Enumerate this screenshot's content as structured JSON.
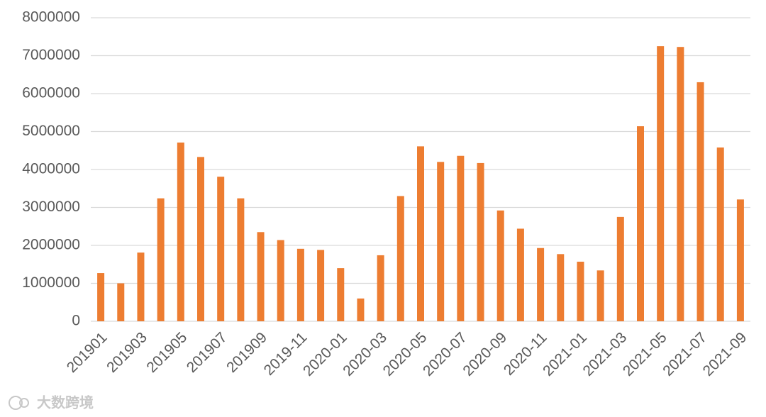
{
  "chart_data": {
    "type": "bar",
    "categories": [
      "201901",
      null,
      "201903",
      null,
      "201905",
      null,
      "201907",
      null,
      "201909",
      null,
      "2019-11",
      null,
      "2020-01",
      null,
      "2020-03",
      null,
      "2020-05",
      null,
      "2020-07",
      null,
      "2020-09",
      null,
      "2020-11",
      null,
      "2021-01",
      null,
      "2021-03",
      null,
      "2021-05",
      null,
      "2021-07",
      null,
      "2021-09"
    ],
    "values": [
      1270000,
      1000000,
      1810000,
      3240000,
      4710000,
      4330000,
      3810000,
      3240000,
      2350000,
      2140000,
      1910000,
      1880000,
      1400000,
      600000,
      1740000,
      3300000,
      4610000,
      4200000,
      4360000,
      4170000,
      2920000,
      2440000,
      1930000,
      1770000,
      1570000,
      1340000,
      2750000,
      5140000,
      7250000,
      7230000,
      6300000,
      4580000,
      3210000
    ],
    "color": "#ed7d31",
    "ylim": [
      0,
      8000000
    ],
    "yticks": [
      0,
      1000000,
      2000000,
      3000000,
      4000000,
      5000000,
      6000000,
      7000000,
      8000000
    ],
    "grid": true,
    "watermark": "大数跨境"
  }
}
